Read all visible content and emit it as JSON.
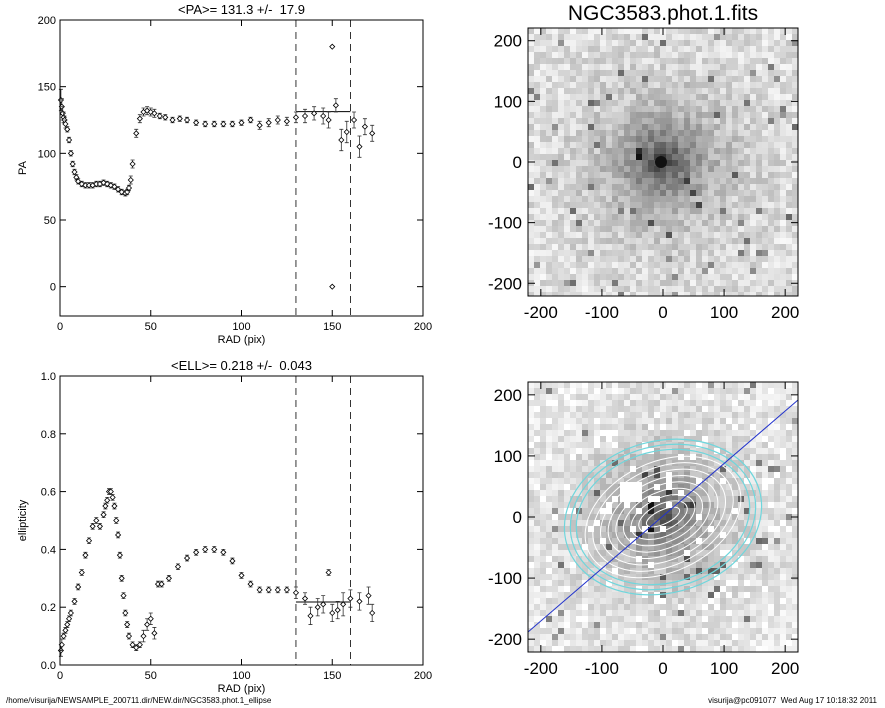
{
  "chart_data": [
    {
      "type": "scatter",
      "title": "<PA>= 131.3 +/-  17.9",
      "xlabel": "RAD (pix)",
      "ylabel": "PA",
      "xlim": [
        0,
        200
      ],
      "ylim": [
        -22,
        200
      ],
      "xticks": [
        0,
        50,
        100,
        150,
        200
      ],
      "yticks": [
        0,
        50,
        100,
        150,
        200
      ],
      "vlines": [
        130,
        160
      ],
      "hline": {
        "y": 131.3,
        "x": [
          130,
          160
        ]
      },
      "x": [
        0.5,
        1,
        1.5,
        2,
        2.5,
        3,
        4,
        5,
        6,
        7,
        8,
        9,
        10,
        12,
        14,
        16,
        18,
        20,
        22,
        24,
        26,
        28,
        30,
        32,
        34,
        36,
        37,
        38,
        39,
        40,
        42,
        44,
        46,
        48,
        50,
        52,
        55,
        58,
        62,
        66,
        70,
        75,
        80,
        85,
        90,
        95,
        100,
        105,
        110,
        115,
        120,
        125,
        130,
        135,
        140,
        145,
        148,
        150,
        150,
        152,
        155,
        158,
        162,
        165,
        168,
        172
      ],
      "values": [
        140,
        135,
        130,
        127,
        125,
        122,
        118,
        110,
        100,
        92,
        86,
        82,
        79,
        77,
        76,
        76,
        76,
        77,
        77,
        78,
        77,
        76,
        75,
        73,
        71,
        70,
        71,
        74,
        80,
        92,
        115,
        126,
        131,
        132,
        131,
        130,
        128,
        127,
        125,
        126,
        125,
        123,
        122,
        122,
        122,
        122,
        123,
        125,
        121,
        123,
        125,
        124,
        127,
        128,
        130,
        128,
        125,
        180,
        0,
        136,
        110,
        116,
        125,
        105,
        120,
        115
      ],
      "errors": [
        8,
        6,
        5,
        4,
        3,
        3,
        2,
        2,
        2,
        2,
        2,
        2,
        2,
        2,
        2,
        2,
        2,
        2,
        2,
        2,
        2,
        2,
        2,
        2,
        2,
        2,
        2,
        2,
        3,
        3,
        3,
        3,
        3,
        3,
        3,
        3,
        2,
        2,
        2,
        2,
        2,
        2,
        2,
        2,
        2,
        2,
        2,
        2,
        3,
        3,
        3,
        3,
        4,
        5,
        5,
        6,
        6,
        0,
        0,
        5,
        8,
        8,
        6,
        8,
        6,
        6
      ]
    },
    {
      "type": "scatter",
      "title": "<ELL>= 0.218 +/-  0.043",
      "xlabel": "RAD (pix)",
      "ylabel": "ellipticity",
      "xlim": [
        0,
        200
      ],
      "ylim": [
        0,
        1
      ],
      "xticks": [
        0,
        50,
        100,
        150,
        200
      ],
      "yticks": [
        {
          "value": 0,
          "label": "0.0"
        },
        0.2,
        0.4,
        0.6,
        0.8,
        {
          "value": 1,
          "label": "1.0"
        }
      ],
      "vlines": [
        130,
        160
      ],
      "hline": {
        "y": 0.218,
        "x": [
          130,
          160
        ]
      },
      "x": [
        0.5,
        1,
        2,
        3,
        4,
        5,
        6,
        8,
        10,
        12,
        14,
        16,
        18,
        20,
        22,
        24,
        25,
        26,
        27,
        28,
        29,
        30,
        31,
        32,
        33,
        34,
        35,
        36,
        37,
        38,
        40,
        42,
        44,
        46,
        48,
        50,
        52,
        54,
        56,
        60,
        65,
        70,
        75,
        80,
        85,
        90,
        95,
        100,
        105,
        110,
        115,
        120,
        125,
        130,
        135,
        138,
        142,
        145,
        148,
        150,
        153,
        156,
        160,
        165,
        170,
        172
      ],
      "values": [
        0.05,
        0.07,
        0.1,
        0.12,
        0.14,
        0.16,
        0.18,
        0.22,
        0.27,
        0.32,
        0.38,
        0.43,
        0.48,
        0.5,
        0.48,
        0.52,
        0.55,
        0.57,
        0.6,
        0.6,
        0.58,
        0.55,
        0.5,
        0.45,
        0.38,
        0.3,
        0.24,
        0.18,
        0.14,
        0.1,
        0.07,
        0.06,
        0.07,
        0.1,
        0.14,
        0.16,
        0.11,
        0.28,
        0.28,
        0.3,
        0.34,
        0.37,
        0.39,
        0.4,
        0.4,
        0.39,
        0.36,
        0.31,
        0.28,
        0.26,
        0.26,
        0.26,
        0.26,
        0.25,
        0.23,
        0.17,
        0.2,
        0.21,
        0.32,
        0.18,
        0.19,
        0.21,
        0.23,
        0.22,
        0.24,
        0.18
      ],
      "errors": [
        0.02,
        0.02,
        0.01,
        0.01,
        0.01,
        0.01,
        0.01,
        0.01,
        0.01,
        0.01,
        0.01,
        0.01,
        0.01,
        0.01,
        0.01,
        0.01,
        0.01,
        0.01,
        0.01,
        0.01,
        0.01,
        0.01,
        0.01,
        0.01,
        0.01,
        0.01,
        0.01,
        0.01,
        0.01,
        0.01,
        0.01,
        0.01,
        0.01,
        0.02,
        0.02,
        0.02,
        0.02,
        0.01,
        0.01,
        0.01,
        0.01,
        0.01,
        0.01,
        0.01,
        0.01,
        0.01,
        0.01,
        0.01,
        0.01,
        0.01,
        0.01,
        0.01,
        0.01,
        0.02,
        0.02,
        0.03,
        0.03,
        0.03,
        0.01,
        0.03,
        0.03,
        0.04,
        0.03,
        0.03,
        0.03,
        0.03
      ]
    },
    {
      "type": "image",
      "title": "NGC3583.phot.1.fits",
      "xlim": [
        -221,
        221
      ],
      "ylim": [
        -221,
        221
      ],
      "xticks": [
        -200,
        -100,
        0,
        100,
        200
      ],
      "yticks": [
        -200,
        -100,
        0,
        100,
        200
      ]
    },
    {
      "type": "image",
      "xlim": [
        -221,
        221
      ],
      "ylim": [
        -221,
        221
      ],
      "xticks": [
        -200,
        -100,
        0,
        100,
        200
      ],
      "yticks": [
        -200,
        -100,
        0,
        100,
        200
      ]
    }
  ],
  "footer": {
    "left": "/home/visurija/NEWSAMPLE_200711.dir/NEW.dir/NGC3583.phot.1_ellipse",
    "right": "visurija@pc091077  Wed Aug 17 10:18:32 2011"
  }
}
